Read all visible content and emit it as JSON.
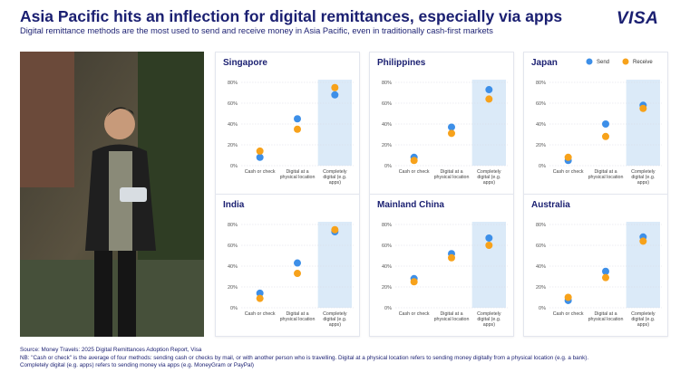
{
  "header": {
    "title": "Asia Pacific hits an inflection for digital remittances, especially via apps",
    "subtitle": "Digital remittance methods are the most used to send and receive money in Asia Pacific, even in traditionally cash-first markets",
    "logo": "VISA"
  },
  "chart_data": [
    {
      "type": "dot",
      "title": "Singapore",
      "categories": [
        "Cash or check",
        "Digital at a physical location",
        "Completely digital (e.g. apps)"
      ],
      "series": [
        {
          "color": "#3d8fe8",
          "values": [
            8,
            45,
            68
          ]
        },
        {
          "color": "#f7a21b",
          "values": [
            14,
            35,
            75
          ]
        }
      ],
      "ylim": [
        0,
        80
      ],
      "yticks": [
        {
          "value": 0,
          "label": "0%"
        },
        {
          "value": 20,
          "label": "20%"
        },
        {
          "value": 40,
          "label": "40%"
        },
        {
          "value": 60,
          "label": "60%"
        },
        {
          "value": 80,
          "label": "80%"
        }
      ],
      "grid": true
    },
    {
      "type": "dot",
      "title": "Philippines",
      "categories": [
        "Cash or check",
        "Digital at a physical location",
        "Completely digital (e.g. apps)"
      ],
      "series": [
        {
          "color": "#3d8fe8",
          "values": [
            8,
            37,
            73
          ]
        },
        {
          "color": "#f7a21b",
          "values": [
            5,
            31,
            64
          ]
        }
      ],
      "ylim": [
        0,
        80
      ],
      "yticks": [
        {
          "value": 0,
          "label": "0%"
        },
        {
          "value": 20,
          "label": "20%"
        },
        {
          "value": 40,
          "label": "40%"
        },
        {
          "value": 60,
          "label": "60%"
        },
        {
          "value": 80,
          "label": "80%"
        }
      ],
      "grid": true
    },
    {
      "type": "dot",
      "title": "Japan",
      "categories": [
        "Cash or check",
        "Digital at a physical location",
        "Completely digital (e.g. apps)"
      ],
      "series": [
        {
          "name": "Send",
          "color": "#3d8fe8",
          "values": [
            5,
            40,
            58
          ]
        },
        {
          "name": "Receive",
          "color": "#f7a21b",
          "values": [
            8,
            28,
            55
          ]
        }
      ],
      "ylim": [
        0,
        80
      ],
      "yticks": [
        {
          "value": 0,
          "label": "0%"
        },
        {
          "value": 20,
          "label": "20%"
        },
        {
          "value": 40,
          "label": "40%"
        },
        {
          "value": 60,
          "label": "60%"
        },
        {
          "value": 80,
          "label": "80%"
        }
      ],
      "grid": true,
      "legend": "top-right"
    },
    {
      "type": "dot",
      "title": "India",
      "categories": [
        "Cash or check",
        "Digital at a physical location",
        "Completely digital (e.g. apps)"
      ],
      "series": [
        {
          "color": "#3d8fe8",
          "values": [
            14,
            43,
            73
          ]
        },
        {
          "color": "#f7a21b",
          "values": [
            9,
            33,
            75
          ]
        }
      ],
      "ylim": [
        0,
        80
      ],
      "yticks": [
        {
          "value": 0,
          "label": "0%"
        },
        {
          "value": 20,
          "label": "20%"
        },
        {
          "value": 40,
          "label": "40%"
        },
        {
          "value": 60,
          "label": "60%"
        },
        {
          "value": 80,
          "label": "80%"
        }
      ],
      "grid": true
    },
    {
      "type": "dot",
      "title": "Mainland China",
      "categories": [
        "Cash or check",
        "Digital at a physical location",
        "Completely digital (e.g. apps)"
      ],
      "series": [
        {
          "color": "#3d8fe8",
          "values": [
            28,
            52,
            67
          ]
        },
        {
          "color": "#f7a21b",
          "values": [
            25,
            48,
            60
          ]
        }
      ],
      "ylim": [
        0,
        80
      ],
      "yticks": [
        {
          "value": 0,
          "label": "0%"
        },
        {
          "value": 20,
          "label": "20%"
        },
        {
          "value": 40,
          "label": "40%"
        },
        {
          "value": 60,
          "label": "60%"
        },
        {
          "value": 80,
          "label": "80%"
        }
      ],
      "grid": true
    },
    {
      "type": "dot",
      "title": "Australia",
      "categories": [
        "Cash or check",
        "Digital at a physical location",
        "Completely digital (e.g. apps)"
      ],
      "series": [
        {
          "color": "#3d8fe8",
          "values": [
            7,
            35,
            68
          ]
        },
        {
          "color": "#f7a21b",
          "values": [
            10,
            29,
            64
          ]
        }
      ],
      "ylim": [
        0,
        80
      ],
      "yticks": [
        {
          "value": 0,
          "label": "0%"
        },
        {
          "value": 20,
          "label": "20%"
        },
        {
          "value": 40,
          "label": "40%"
        },
        {
          "value": 60,
          "label": "60%"
        },
        {
          "value": 80,
          "label": "80%"
        }
      ],
      "grid": true
    }
  ],
  "footer": {
    "source": "Source: Money Travels: 2025 Digital Remittances Adoption Report, Visa",
    "note1": "NB: \"Cash or check\" is the average of four methods: sending cash or checks by mail, or with another person who is travelling. Digital at a physical location refers to sending money digitally from a physical location (e.g. a bank).",
    "note2": "Completely digital (e.g. apps) refers to sending money via apps (e.g. MoneyGram or PayPal)"
  }
}
